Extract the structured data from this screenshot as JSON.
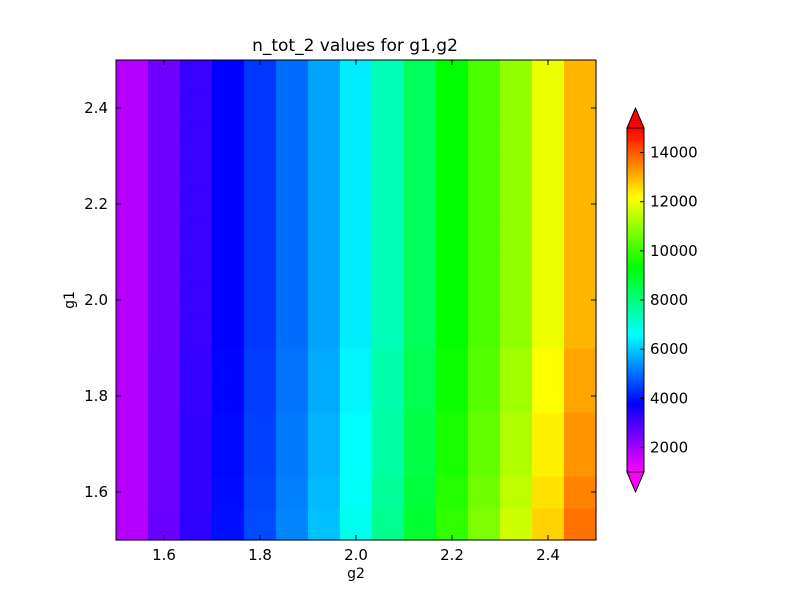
{
  "chart_data": {
    "type": "heatmap",
    "title": "n_tot_2 values for g1,g2",
    "xlabel": "g2",
    "ylabel": "g1",
    "xlim": [
      1.5,
      2.5
    ],
    "ylim": [
      1.5,
      2.5
    ],
    "x": [
      1.5,
      1.5667,
      1.6333,
      1.7,
      1.7667,
      1.8333,
      1.9,
      1.9667,
      2.0333,
      2.1,
      2.1667,
      2.2333,
      2.3,
      2.3667,
      2.4333,
      2.5
    ],
    "y": [
      1.5,
      1.5667,
      1.6333,
      1.7,
      1.7667,
      1.8333,
      1.9,
      1.9667,
      2.0333,
      2.1,
      2.1667,
      2.2333,
      2.3,
      2.3667,
      2.4333,
      2.5
    ],
    "column_values": [
      1800,
      2600,
      3200,
      3800,
      4400,
      5000,
      5600,
      6400,
      7400,
      8400,
      9400,
      10200,
      11000,
      12000,
      13000,
      14000
    ],
    "row_trend": [
      400,
      300,
      200,
      200,
      100,
      100,
      0,
      0,
      0,
      0,
      0,
      0,
      0,
      0,
      0,
      0
    ],
    "x_ticks": [
      "1.6",
      "1.8",
      "2.0",
      "2.2",
      "2.4"
    ],
    "x_tick_values": [
      1.6,
      1.8,
      2.0,
      2.2,
      2.4
    ],
    "y_ticks": [
      "1.6",
      "1.8",
      "2.0",
      "2.2",
      "2.4"
    ],
    "y_tick_values": [
      1.6,
      1.8,
      2.0,
      2.2,
      2.4
    ],
    "colorbar": {
      "colormap": "gist_rainbow_r",
      "range": [
        1000,
        15000
      ],
      "extend": "both",
      "ticks": [
        "2000",
        "4000",
        "6000",
        "8000",
        "10000",
        "12000",
        "14000"
      ],
      "tick_values": [
        2000,
        4000,
        6000,
        8000,
        10000,
        12000,
        14000
      ]
    },
    "grid": false
  }
}
